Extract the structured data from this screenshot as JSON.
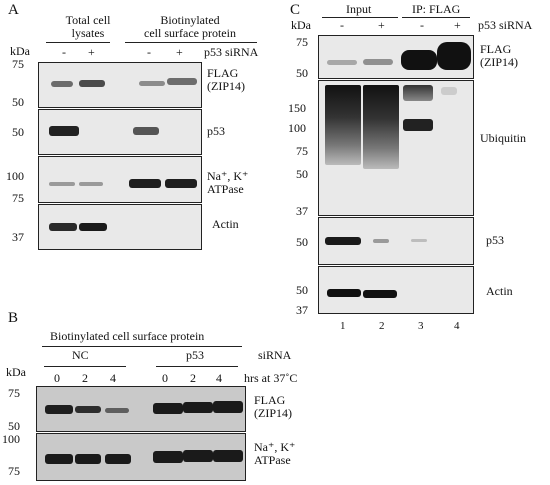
{
  "panel_a": {
    "letter": "A",
    "kda": "kDa",
    "group1": "Total cell lysates",
    "group1_line1": "Total cell",
    "group1_line2": "lysates",
    "group2_line1": "Biotinylated",
    "group2_line2": "cell surface protein",
    "signs": [
      "-",
      "+",
      "-",
      "+"
    ],
    "treatment": "p53 siRNA",
    "blots": [
      {
        "label_line1": "FLAG",
        "label_line2": "(ZIP14)",
        "markers": [
          "75",
          "50"
        ]
      },
      {
        "label_line1": "p53",
        "label_line2": "",
        "markers": [
          "50"
        ]
      },
      {
        "label_line1": "Na⁺, K⁺",
        "label_line2": "ATPase",
        "markers": [
          "100",
          "75"
        ]
      },
      {
        "label_line1": "Actin",
        "label_line2": "",
        "markers": [
          "37"
        ]
      }
    ]
  },
  "panel_b": {
    "letter": "B",
    "title": "Biotinylated cell surface protein",
    "kda": "kDa",
    "groups": [
      "NC",
      "p53"
    ],
    "treatment": "siRNA",
    "times": [
      "0",
      "2",
      "4",
      "0",
      "2",
      "4"
    ],
    "time_label": "hrs  at 37˚C",
    "blots": [
      {
        "label_line1": "FLAG",
        "label_line2": "(ZIP14)",
        "markers": [
          "75",
          "50"
        ]
      },
      {
        "label_line1": "Na⁺, K⁺",
        "label_line2": "ATPase",
        "markers": [
          "100",
          "75"
        ]
      }
    ]
  },
  "panel_c": {
    "letter": "C",
    "kda": "kDa",
    "group1": "Input",
    "group2": "IP: FLAG",
    "signs": [
      "-",
      "+",
      "-",
      "+"
    ],
    "treatment": "p53 siRNA",
    "blots": [
      {
        "label_line1": "FLAG",
        "label_line2": "(ZIP14)",
        "markers": [
          "75",
          "50"
        ]
      },
      {
        "label_line1": "Ubiquitin",
        "label_line2": "",
        "markers": [
          "150",
          "100",
          "75",
          "50",
          "37"
        ]
      },
      {
        "label_line1": "p53",
        "label_line2": "",
        "markers": [
          "50"
        ]
      },
      {
        "label_line1": "Actin",
        "label_line2": "",
        "markers": [
          "50",
          "37"
        ]
      }
    ],
    "lanes": [
      "1",
      "2",
      "3",
      "4"
    ]
  }
}
